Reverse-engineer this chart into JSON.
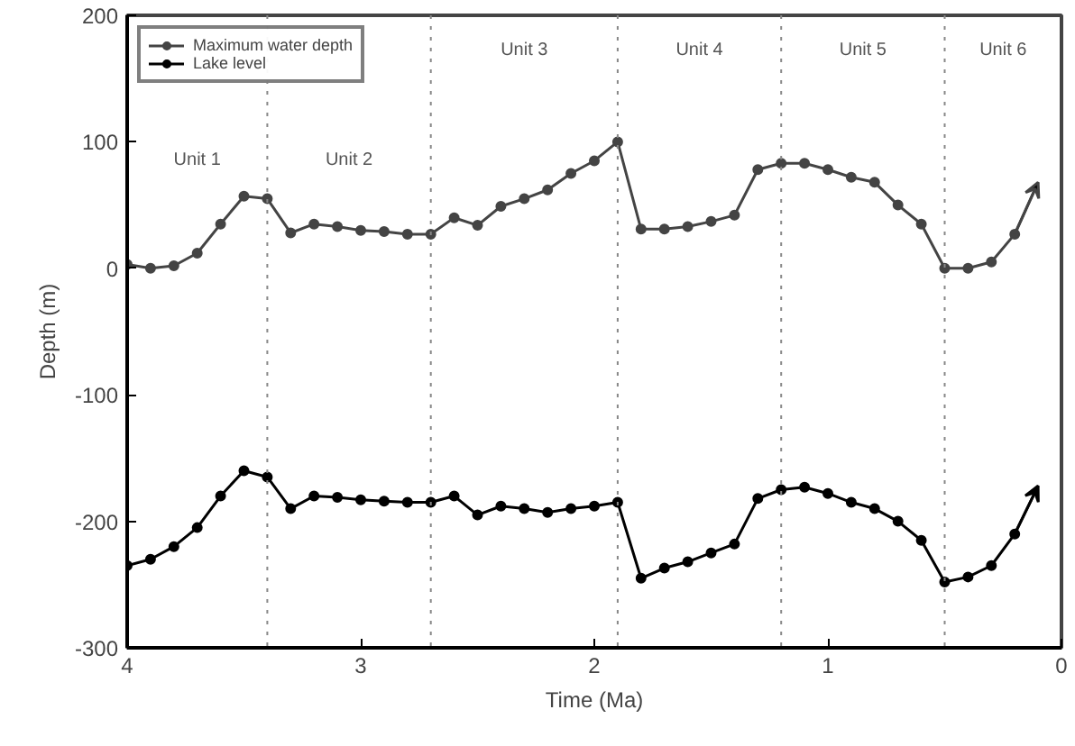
{
  "chart_data": {
    "type": "line",
    "xlabel": "Time (Ma)",
    "ylabel": "Depth (m)",
    "x": [
      4.0,
      3.9,
      3.8,
      3.7,
      3.6,
      3.5,
      3.4,
      3.3,
      3.2,
      3.1,
      3.0,
      2.9,
      2.8,
      2.7,
      2.6,
      2.5,
      2.4,
      2.3,
      2.2,
      2.1,
      2.0,
      1.9,
      1.8,
      1.7,
      1.6,
      1.5,
      1.4,
      1.3,
      1.2,
      1.1,
      1.0,
      0.9,
      0.8,
      0.7,
      0.6,
      0.5,
      0.4,
      0.3,
      0.2,
      0.1
    ],
    "series": [
      {
        "name": "Maximum water depth",
        "color": "#444444",
        "values": [
          3,
          0,
          2,
          12,
          35,
          57,
          55,
          28,
          35,
          33,
          30,
          29,
          27,
          27,
          40,
          34,
          49,
          55,
          62,
          75,
          85,
          100,
          31,
          31,
          33,
          37,
          42,
          78,
          83,
          83,
          78,
          72,
          68,
          50,
          35,
          0,
          0,
          5,
          27,
          68
        ]
      },
      {
        "name": "Lake level",
        "color": "#000000",
        "values": [
          -235,
          -230,
          -220,
          -205,
          -180,
          -160,
          -165,
          -190,
          -180,
          -181,
          -183,
          -184,
          -185,
          -185,
          -180,
          -195,
          -188,
          -190,
          -193,
          -190,
          -188,
          -185,
          -245,
          -237,
          -232,
          -225,
          -218,
          -182,
          -175,
          -173,
          -178,
          -185,
          -190,
          -200,
          -215,
          -248,
          -244,
          -235,
          -210,
          -172
        ]
      }
    ],
    "xlim": [
      4,
      0
    ],
    "xticks": [
      4,
      3,
      2,
      1,
      0
    ],
    "ylim": [
      -300,
      200
    ],
    "yticks": [
      -300,
      -200,
      -100,
      0,
      100,
      200
    ],
    "ref_lines": [
      {
        "axis": "x",
        "value": 3.4,
        "line_style": "dotted",
        "color": "#888888"
      },
      {
        "axis": "x",
        "value": 2.7,
        "line_style": "dotted",
        "color": "#888888"
      },
      {
        "axis": "x",
        "value": 1.9,
        "line_style": "dotted",
        "color": "#888888"
      },
      {
        "axis": "x",
        "value": 1.2,
        "line_style": "dotted",
        "color": "#888888"
      },
      {
        "axis": "x",
        "value": 0.5,
        "line_style": "dotted",
        "color": "#888888"
      }
    ],
    "annotations": [
      "Unit 1",
      "Unit 2",
      "Unit 3",
      "Unit 4",
      "Unit 5",
      "Unit 6"
    ],
    "marker": "circle",
    "line_style": "solid",
    "grid": false,
    "legend": "top left"
  }
}
